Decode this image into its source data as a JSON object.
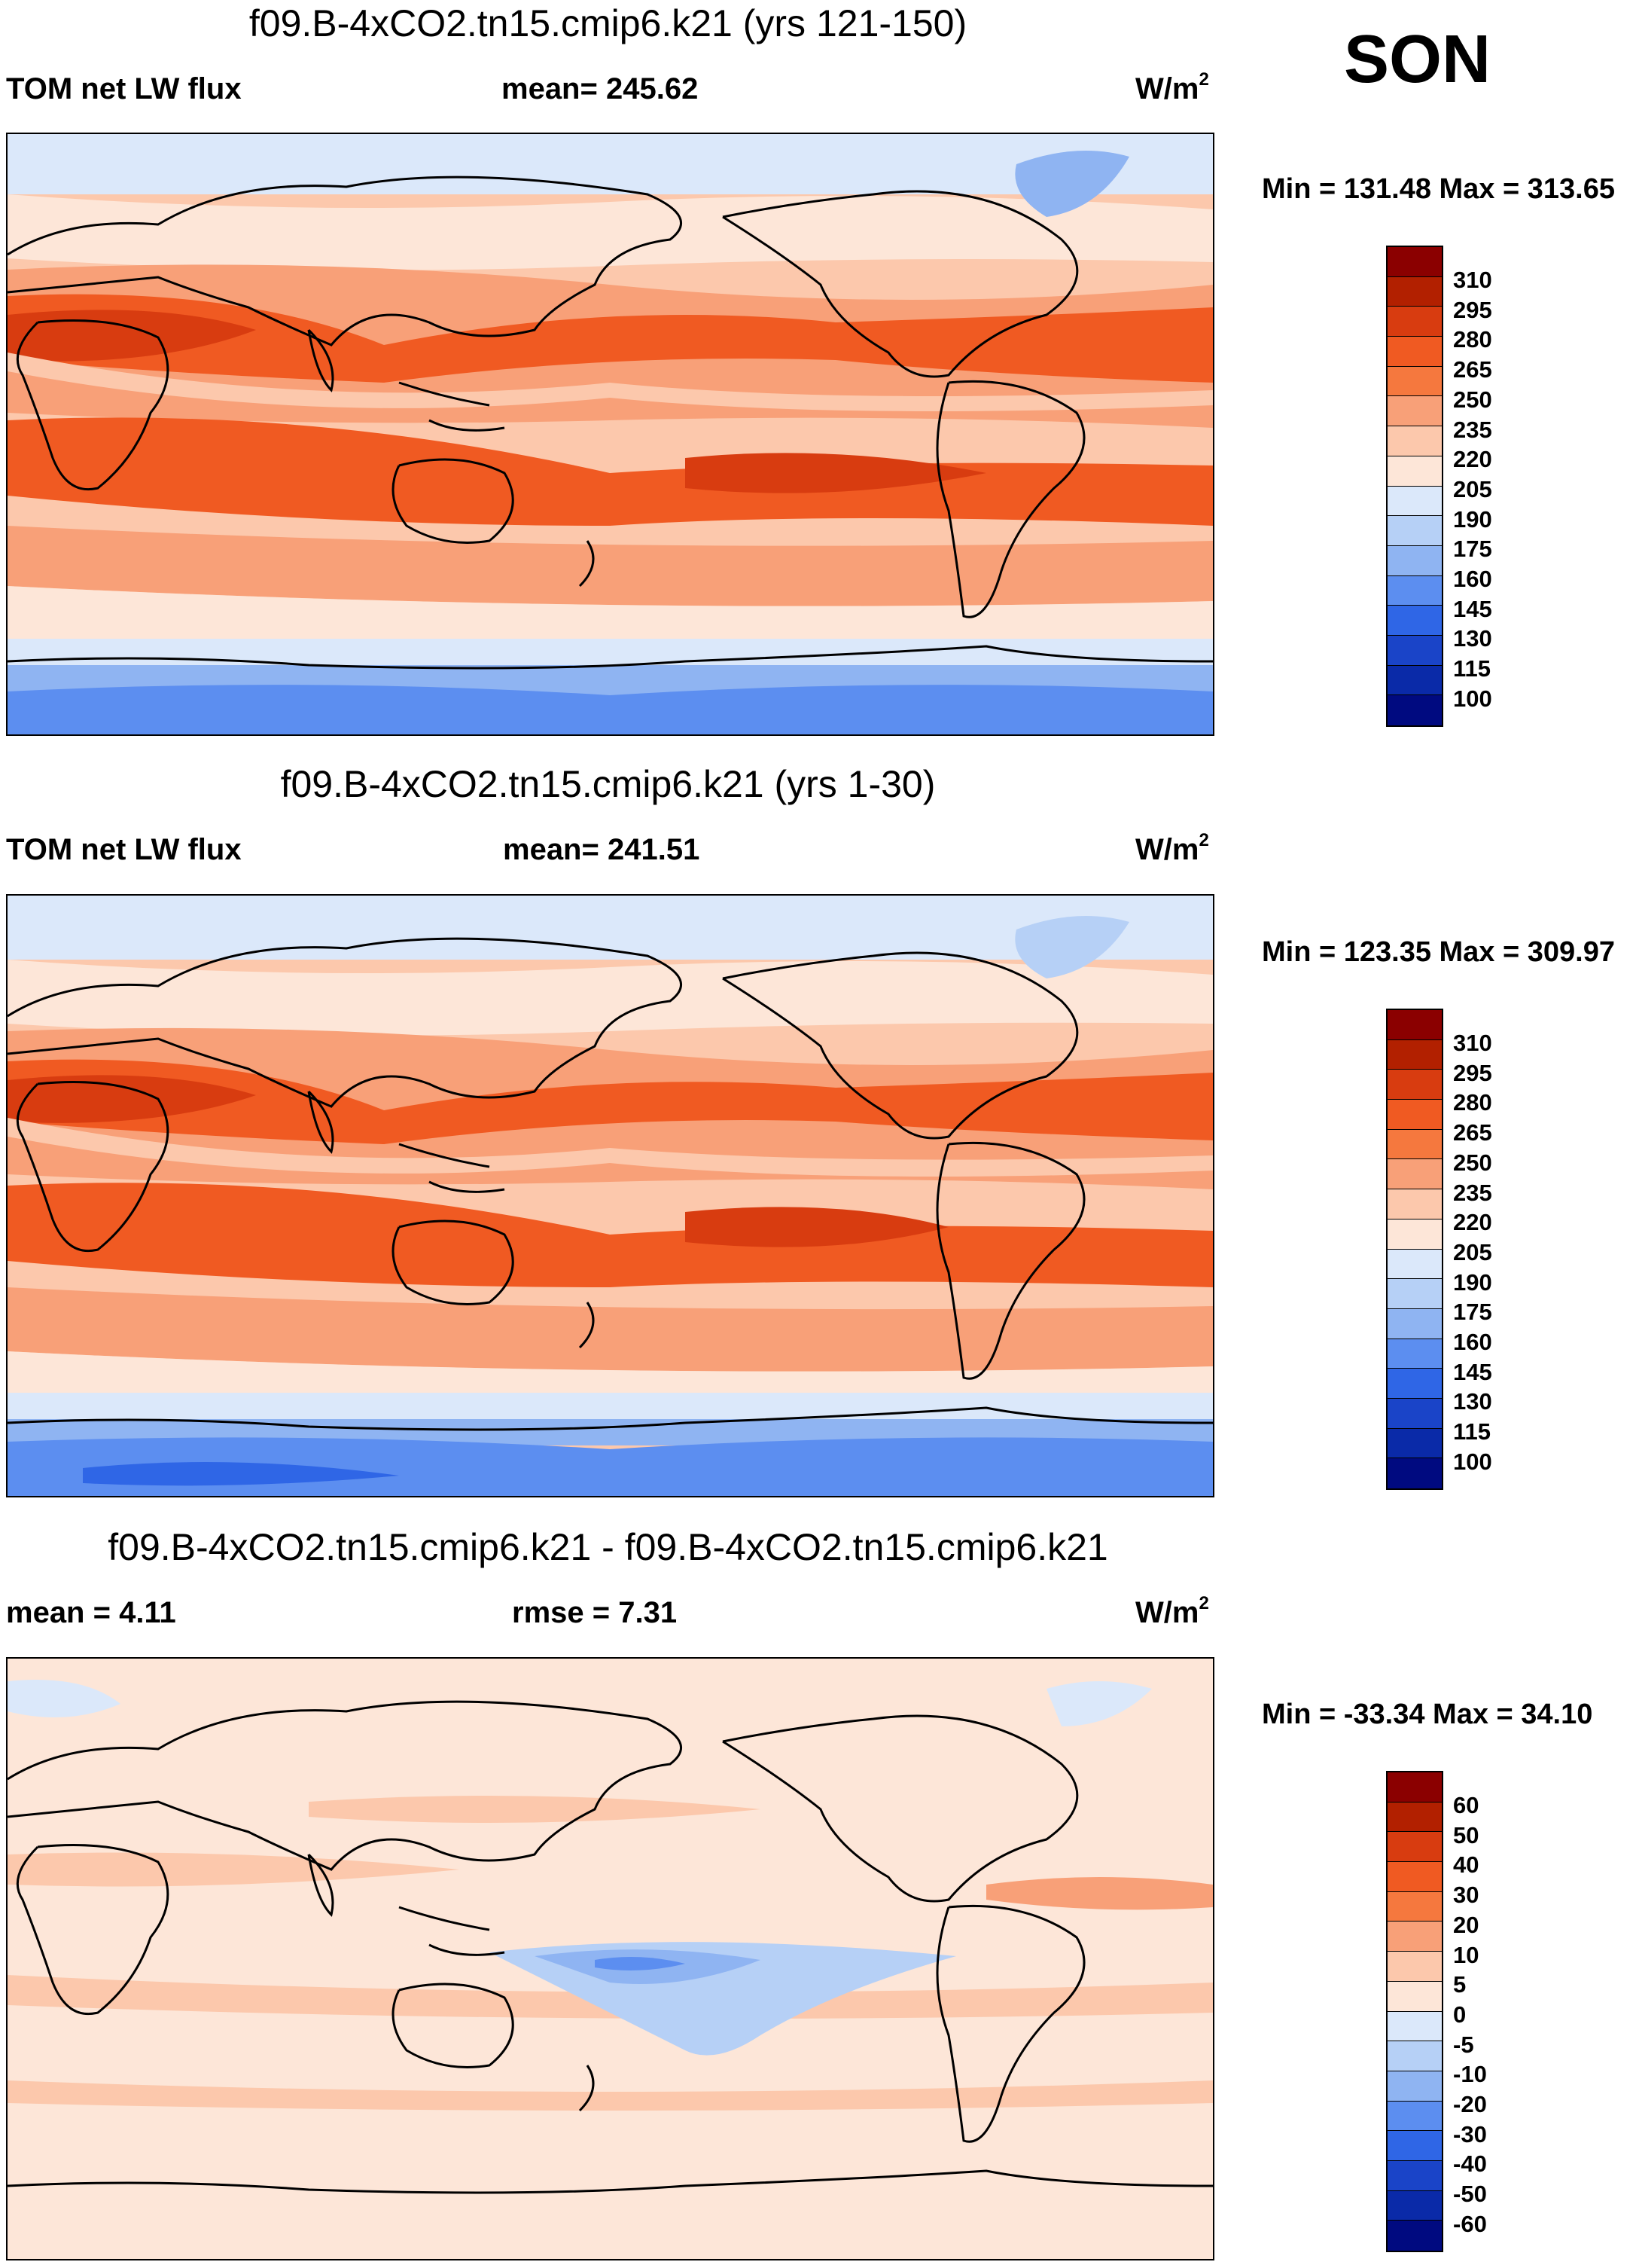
{
  "season": "SON",
  "units_label": "W/m",
  "units_exp": "2",
  "panels": [
    {
      "title": "f09.B-4xCO2.tn15.cmip6.k21 (yrs 121-150)",
      "left_label": "TOM net LW flux",
      "mid_label": "mean= 245.62",
      "minmax": "Min = 131.48 Max = 313.65"
    },
    {
      "title": "f09.B-4xCO2.tn15.cmip6.k21 (yrs 1-30)",
      "left_label": "TOM net LW flux",
      "mid_label": "mean= 241.51",
      "minmax": "Min = 123.35 Max = 309.97"
    },
    {
      "title": "f09.B-4xCO2.tn15.cmip6.k21 - f09.B-4xCO2.tn15.cmip6.k21",
      "left_label": "mean =   4.11",
      "mid_label": "rmse =   7.31",
      "minmax": "Min = -33.34 Max =  34.10"
    }
  ],
  "colorbars": {
    "flux": {
      "levels": [
        "310",
        "295",
        "280",
        "265",
        "250",
        "235",
        "220",
        "205",
        "190",
        "175",
        "160",
        "145",
        "130",
        "115",
        "100"
      ],
      "colors": [
        "#8b0000",
        "#b22000",
        "#d83c10",
        "#f05a22",
        "#f5783e",
        "#f8a078",
        "#fcc8ac",
        "#fde6d8",
        "#dbe8fa",
        "#b6d0f6",
        "#8fb4f2",
        "#5c8ef0",
        "#2f66e6",
        "#1a44c8",
        "#0a2aa8",
        "#000a80"
      ]
    },
    "diff": {
      "levels": [
        "60",
        "50",
        "40",
        "30",
        "20",
        "10",
        "5",
        "0",
        "-5",
        "-10",
        "-20",
        "-30",
        "-40",
        "-50",
        "-60"
      ],
      "colors": [
        "#8b0000",
        "#b22000",
        "#d83c10",
        "#f05a22",
        "#f5783e",
        "#f8a078",
        "#fcc8ac",
        "#fde6d8",
        "#dbe8fa",
        "#b6d0f6",
        "#8fb4f2",
        "#5c8ef0",
        "#2f66e6",
        "#1a44c8",
        "#0a2aa8",
        "#000a80"
      ]
    }
  },
  "map_palette": {
    "deep_red": "#d83c10",
    "red": "#f05a22",
    "orange": "#f5783e",
    "salmon": "#f8a078",
    "peach": "#fcc8ac",
    "cream": "#fde6d8",
    "pale_blue": "#dbe8fa",
    "light_blue": "#b6d0f6",
    "blue": "#8fb4f2",
    "med_blue": "#5c8ef0",
    "dark_blue": "#2f66e6"
  }
}
